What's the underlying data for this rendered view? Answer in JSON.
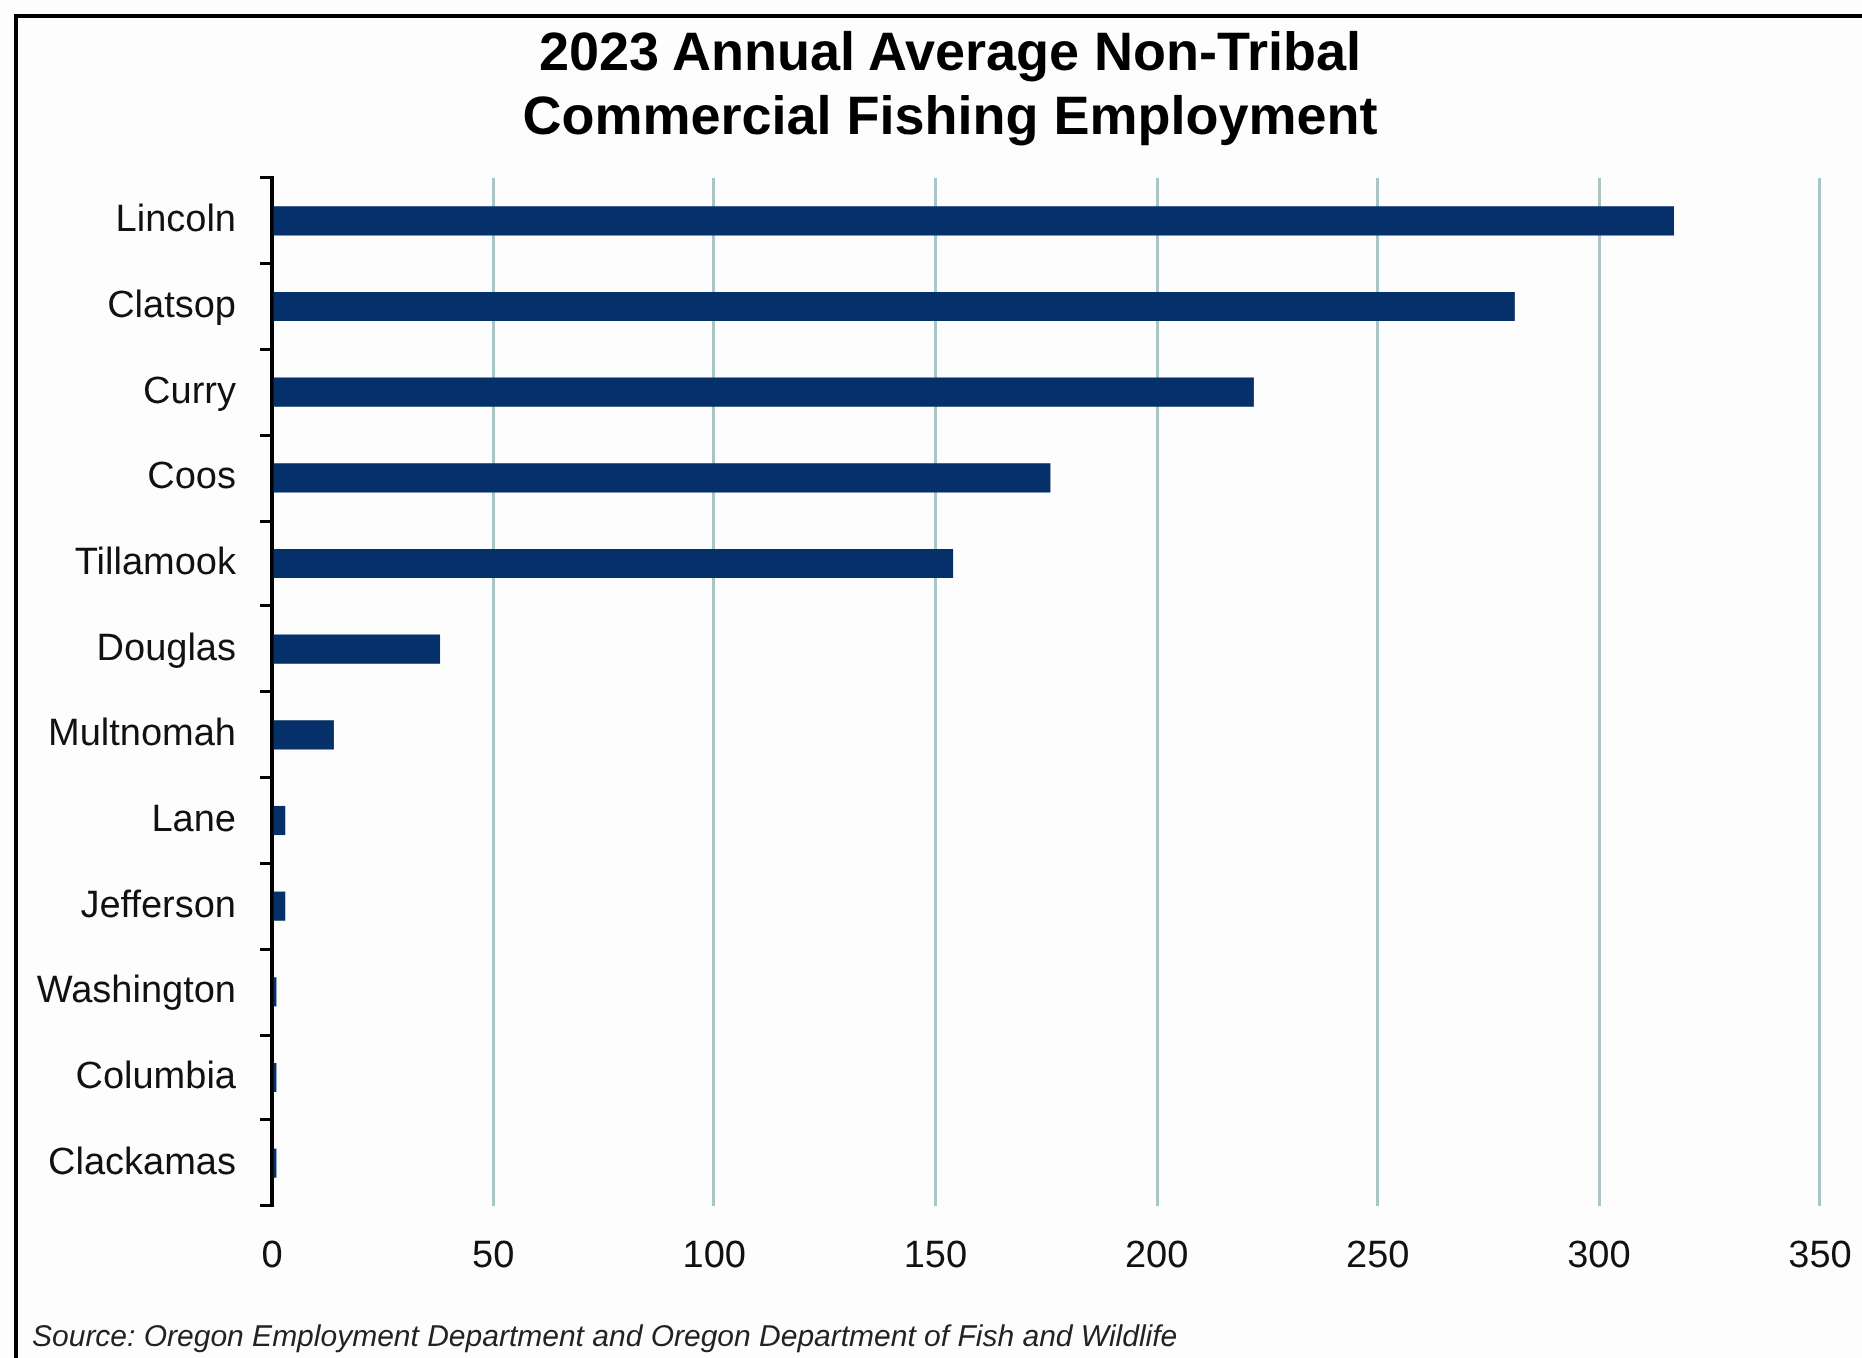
{
  "chart_data": {
    "type": "bar",
    "orientation": "horizontal",
    "title": "2023 Annual Average Non-Tribal Commercial Fishing Employment",
    "categories": [
      "Lincoln",
      "Clatsop",
      "Curry",
      "Coos",
      "Tillamook",
      "Douglas",
      "Multnomah",
      "Lane",
      "Jefferson",
      "Washington",
      "Columbia",
      "Clackamas"
    ],
    "values": [
      317,
      281,
      222,
      176,
      154,
      38,
      14,
      3,
      3,
      1,
      1,
      1
    ],
    "color": "#06306a",
    "xlim": [
      0,
      350
    ],
    "xticks": [
      0,
      50,
      100,
      150,
      200,
      250,
      300,
      350
    ],
    "grid": "x",
    "annotations": [
      "Source: Oregon Employment Department and Oregon Department of Fish and Wildlife"
    ]
  }
}
